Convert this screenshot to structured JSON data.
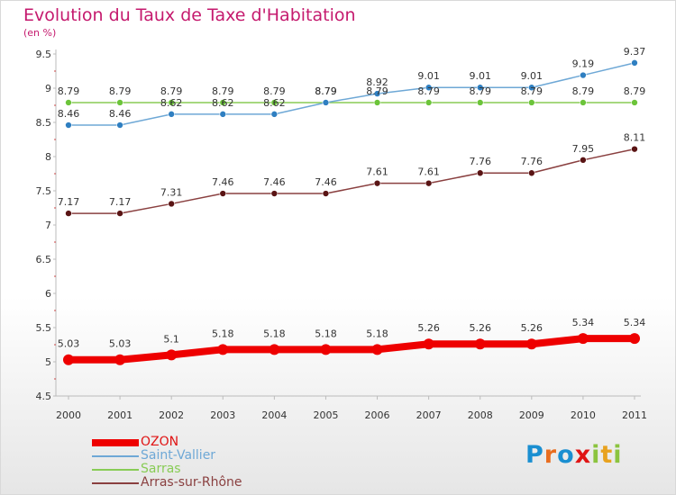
{
  "header": {
    "title": "Evolution du Taux de Taxe d'Habitation",
    "subtitle": "(en %)"
  },
  "brand": {
    "text": "Proxiti",
    "letters": [
      {
        "ch": "P",
        "color": "#1a8fd1"
      },
      {
        "ch": "r",
        "color": "#e86d1f"
      },
      {
        "ch": "o",
        "color": "#1a8fd1"
      },
      {
        "ch": "x",
        "color": "#e01515"
      },
      {
        "ch": "i",
        "color": "#8bc43f"
      },
      {
        "ch": "t",
        "color": "#e8a21f"
      },
      {
        "ch": "i",
        "color": "#8bc43f"
      }
    ]
  },
  "chart_data": {
    "type": "line",
    "title": "Evolution du Taux de Taxe d'Habitation",
    "ylabel": "(en %)",
    "xlabel": "",
    "x": [
      "2000",
      "2001",
      "2002",
      "2003",
      "2004",
      "2005",
      "2006",
      "2007",
      "2008",
      "2009",
      "2010",
      "2011"
    ],
    "ylim": [
      4.5,
      9.5
    ],
    "yticks": [
      "4.5",
      "5",
      "5.5",
      "6",
      "6.5",
      "7",
      "7.5",
      "8",
      "8.5",
      "9",
      "9.5"
    ],
    "grid": false,
    "legend_position": "bottom-left",
    "series": [
      {
        "name": "OZON",
        "color": "#ee0000",
        "width": 8,
        "marker": 6,
        "values": [
          5.03,
          5.03,
          5.1,
          5.18,
          5.18,
          5.18,
          5.18,
          5.26,
          5.26,
          5.26,
          5.34,
          5.34
        ],
        "labels": [
          "5.03",
          "5.03",
          "5.1",
          "5.18",
          "5.18",
          "5.18",
          "5.18",
          "5.26",
          "5.26",
          "5.26",
          "5.34",
          "5.34"
        ]
      },
      {
        "name": "Saint-Vallier",
        "color": "#6ea8d6",
        "width": 1.5,
        "marker": 3.5,
        "marker_color": "#2f7fc1",
        "values": [
          8.46,
          8.46,
          8.62,
          8.62,
          8.62,
          8.79,
          8.92,
          9.01,
          9.01,
          9.01,
          9.19,
          9.37
        ],
        "labels": [
          "8.46",
          "8.46",
          "8.62",
          "8.62",
          "8.62",
          "8.79",
          "8.92",
          "9.01",
          "9.01",
          "9.01",
          "9.19",
          "9.37"
        ]
      },
      {
        "name": "Sarras",
        "color": "#88cc55",
        "width": 1.5,
        "marker": 3.5,
        "marker_color": "#6cc43a",
        "values": [
          8.79,
          8.79,
          8.79,
          8.79,
          8.79,
          8.79,
          8.79,
          8.79,
          8.79,
          8.79,
          8.79,
          8.79
        ],
        "labels": [
          "8.79",
          "8.79",
          "8.79",
          "8.79",
          "8.79",
          "8.79",
          "8.79",
          "8.79",
          "8.79",
          "8.79",
          "8.79",
          "8.79"
        ]
      },
      {
        "name": "Arras-sur-Rhône",
        "color": "#8a4040",
        "width": 1.5,
        "marker": 3.5,
        "marker_color": "#5a1414",
        "values": [
          7.17,
          7.17,
          7.31,
          7.46,
          7.46,
          7.46,
          7.61,
          7.61,
          7.76,
          7.76,
          7.95,
          8.11
        ],
        "labels": [
          "7.17",
          "7.17",
          "7.31",
          "7.46",
          "7.46",
          "7.46",
          "7.61",
          "7.61",
          "7.76",
          "7.76",
          "7.95",
          "8.11"
        ]
      }
    ]
  }
}
